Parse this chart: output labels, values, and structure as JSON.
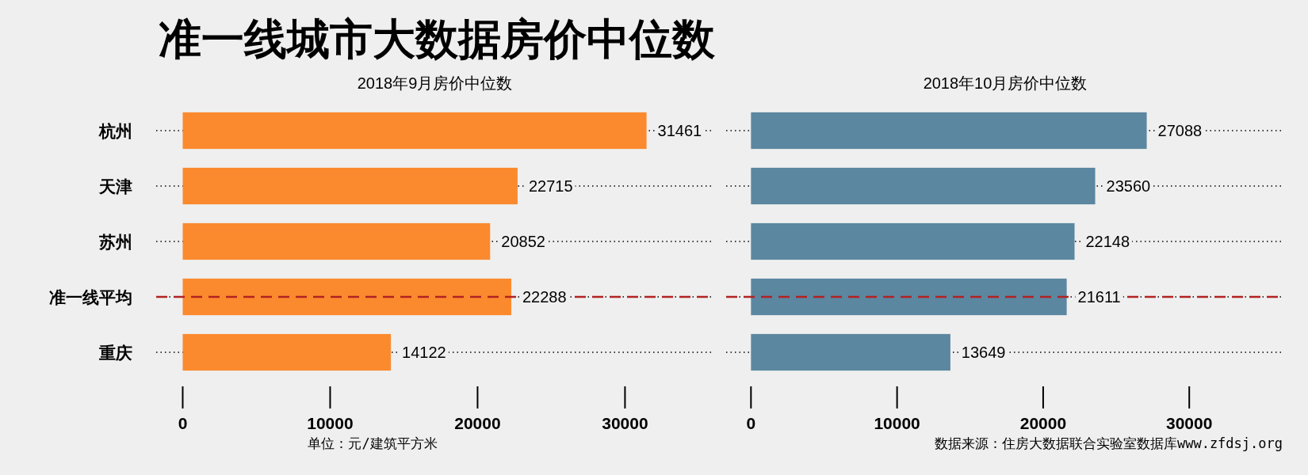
{
  "chart_data": [
    {
      "type": "bar",
      "orientation": "horizontal",
      "title": "准一线城市大数据房价中位数",
      "subtitle": "2018年9月房价中位数",
      "categories": [
        "杭州",
        "天津",
        "苏州",
        "准一线平均",
        "重庆"
      ],
      "values": [
        31461,
        22715,
        20852,
        22288,
        14122
      ],
      "color": "#fb8a2e",
      "xlim": [
        -1800,
        36000
      ],
      "xticks": [
        0,
        10000,
        20000,
        30000
      ],
      "data_labels": true,
      "grid": "y",
      "ref_lines": [
        {
          "axis": "y",
          "value": "准一线平均",
          "color": "#b22222",
          "line_style": "dashed"
        }
      ],
      "annotations": [
        "单位：元/建筑平方米"
      ]
    },
    {
      "type": "bar",
      "orientation": "horizontal",
      "subtitle": "2018年10月房价中位数",
      "categories": [
        "杭州",
        "天津",
        "苏州",
        "准一线平均",
        "重庆"
      ],
      "values": [
        27088,
        23560,
        22148,
        21611,
        13649
      ],
      "color": "#5b87a0",
      "xlim": [
        -1700,
        36500
      ],
      "xticks": [
        0,
        10000,
        20000,
        30000
      ],
      "data_labels": true,
      "grid": "y",
      "tick_labels": "x",
      "ref_lines": [
        {
          "axis": "y",
          "value": "准一线平均",
          "color": "#b22222",
          "line_style": "dashed"
        }
      ],
      "annotations": [
        "数据来源：住房大数据联合实验室数据库www.zfdsj.org"
      ]
    }
  ]
}
